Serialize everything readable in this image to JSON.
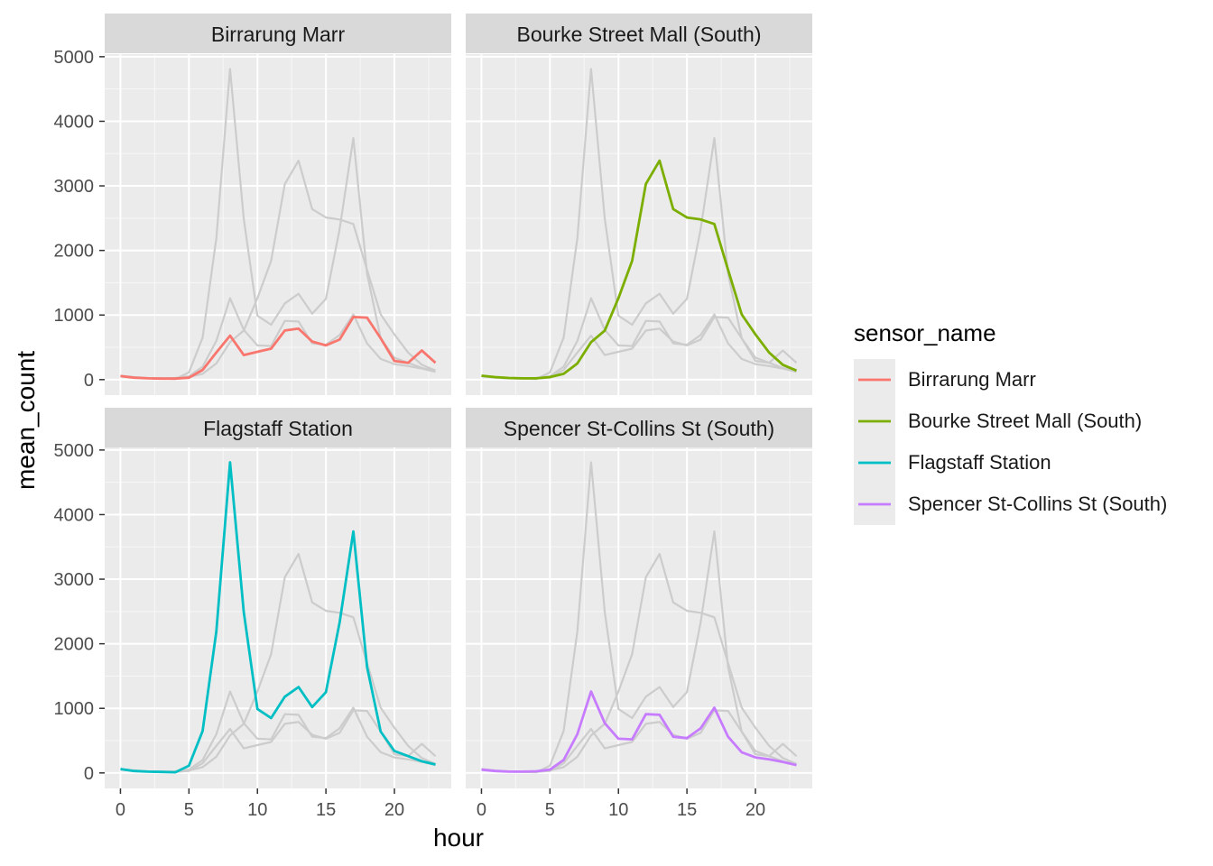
{
  "chart_data": {
    "type": "line",
    "xlabel": "hour",
    "ylabel": "mean_count",
    "xlim": [
      -1.15,
      24.15
    ],
    "ylim": [
      -240,
      5040
    ],
    "x_ticks": [
      0,
      5,
      10,
      15,
      20
    ],
    "y_ticks": [
      0,
      1000,
      2000,
      3000,
      4000,
      5000
    ],
    "grid": true,
    "legend_title": "sensor_name",
    "legend_position": "right",
    "x": [
      0,
      1,
      2,
      3,
      4,
      5,
      6,
      7,
      8,
      9,
      10,
      11,
      12,
      13,
      14,
      15,
      16,
      17,
      18,
      19,
      20,
      21,
      22,
      23
    ],
    "series": [
      {
        "name": "Birrarung Marr",
        "color": "#F8766D",
        "values": [
          55,
          30,
          20,
          15,
          15,
          30,
          150,
          420,
          680,
          380,
          430,
          480,
          760,
          790,
          590,
          530,
          620,
          970,
          960,
          640,
          290,
          260,
          450,
          260
        ]
      },
      {
        "name": "Bourke Street Mall (South)",
        "color": "#7CAE00",
        "values": [
          60,
          40,
          25,
          20,
          20,
          40,
          90,
          250,
          580,
          760,
          1260,
          1840,
          3030,
          3390,
          2640,
          2510,
          2480,
          2410,
          1700,
          1010,
          700,
          420,
          230,
          140
        ]
      },
      {
        "name": "Flagstaff Station",
        "color": "#00BFC4",
        "values": [
          60,
          30,
          20,
          15,
          10,
          110,
          650,
          2190,
          4810,
          2490,
          990,
          850,
          1180,
          1330,
          1020,
          1250,
          2330,
          3740,
          1640,
          640,
          340,
          260,
          180,
          130
        ]
      },
      {
        "name": "Spencer St-Collins St (South)",
        "color": "#C77CFF",
        "values": [
          50,
          30,
          20,
          20,
          25,
          50,
          200,
          600,
          1260,
          770,
          530,
          520,
          910,
          900,
          560,
          540,
          690,
          1010,
          560,
          320,
          240,
          210,
          170,
          120
        ]
      }
    ],
    "facets": [
      "Birrarung Marr",
      "Bourke Street Mall (South)",
      "Flagstaff Station",
      "Spencer St-Collins St (South)"
    ],
    "background_series_color": "#cccccc"
  }
}
